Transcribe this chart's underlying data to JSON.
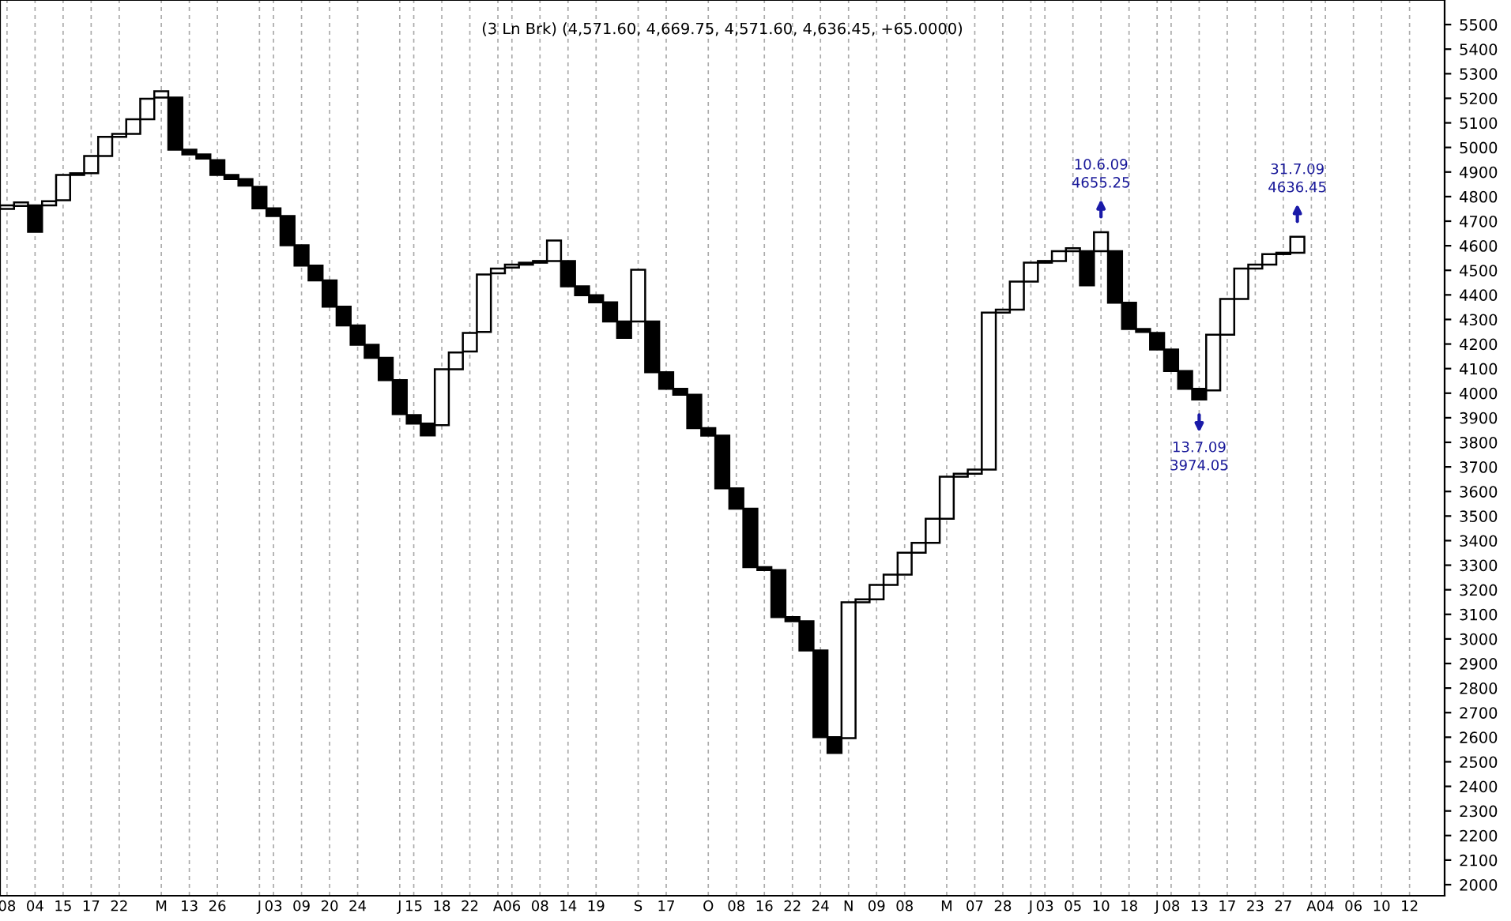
{
  "chart_data": {
    "type": "bar",
    "title": "(3 Ln Brk) (4,571.60, 4,669.75, 4,571.60, 4,636.45, +65.0000)",
    "categories": [
      "08",
      null,
      "04",
      null,
      "15",
      null,
      "17",
      null,
      "22",
      null,
      null,
      "M",
      null,
      "13",
      null,
      "26",
      null,
      null,
      "J",
      "03",
      null,
      "09",
      null,
      "20",
      null,
      "24",
      null,
      null,
      "J",
      "15",
      null,
      "18",
      null,
      "22",
      null,
      "A",
      "06",
      null,
      "08",
      null,
      "14",
      null,
      "19",
      null,
      null,
      "S",
      null,
      "17",
      null,
      null,
      "O",
      null,
      "08",
      null,
      "16",
      null,
      "22",
      null,
      "24",
      null,
      "N",
      null,
      "09",
      null,
      "08",
      null,
      null,
      "M",
      null,
      "07",
      null,
      "28",
      null,
      "J",
      "03",
      null,
      "05",
      null,
      "10",
      null,
      "18",
      null,
      "J",
      "08",
      null,
      "13",
      null,
      "17",
      null,
      "23",
      null,
      "27",
      null,
      "A",
      "04",
      null,
      "06",
      null,
      "10",
      null,
      "12",
      null,
      null
    ],
    "base": [
      4750,
      4762,
      4657,
      4764,
      4785,
      4888,
      4895,
      4965,
      5043,
      5055,
      5115,
      5203,
      4991,
      4972,
      4955,
      4888,
      4871,
      4845,
      4752,
      4721,
      4602,
      4519,
      4459,
      4352,
      4276,
      4197,
      4144,
      4053,
      3915,
      3876,
      3828,
      3870,
      4097,
      4170,
      4249,
      4488,
      4511,
      4523,
      4531,
      4538,
      4435,
      4399,
      4370,
      4292,
      4225,
      4292,
      4085,
      4018,
      3994,
      3858,
      3827,
      3613,
      3530,
      3292,
      3280,
      3089,
      3072,
      2953,
      2600,
      2536,
      2596,
      3149,
      3161,
      3220,
      3262,
      3351,
      3391,
      3489,
      3660,
      3672,
      3689,
      4328,
      4340,
      4454,
      4531,
      4538,
      4578,
      4439,
      4578,
      4368,
      4261,
      4249,
      4178,
      4090,
      4018,
      3974.05,
      4011,
      4238,
      4383,
      4507,
      4523,
      4566,
      4571.6,
      null,
      null,
      null,
      null,
      null,
      null,
      null,
      null,
      null,
      null
    ],
    "values": [
      14,
      14,
      107,
      17,
      103,
      7,
      70,
      78,
      12,
      60,
      83,
      26,
      212,
      19,
      17,
      60,
      17,
      26,
      88,
      31,
      119,
      83,
      60,
      107,
      76,
      79,
      53,
      91,
      138,
      35,
      48,
      227,
      69,
      75,
      234,
      19,
      12,
      8,
      7,
      83,
      103,
      36,
      29,
      78,
      67,
      210,
      207,
      67,
      24,
      136,
      31,
      214,
      83,
      238,
      12,
      191,
      17,
      119,
      353,
      64,
      553,
      12,
      59,
      42,
      89,
      40,
      98,
      171,
      12,
      17,
      639,
      12,
      114,
      77,
      7,
      40,
      12,
      139,
      77.25,
      210,
      107,
      12,
      67,
      88,
      72,
      43.95,
      227,
      145,
      124,
      16,
      43,
      5.6,
      64.85,
      null,
      null,
      null,
      null,
      null,
      null,
      null,
      null,
      null,
      null
    ],
    "colors": [
      "#ffffff",
      "#ffffff",
      "#000000",
      "#ffffff",
      "#ffffff",
      "#ffffff",
      "#ffffff",
      "#ffffff",
      "#ffffff",
      "#ffffff",
      "#ffffff",
      "#ffffff",
      "#000000",
      "#000000",
      "#000000",
      "#000000",
      "#000000",
      "#000000",
      "#000000",
      "#000000",
      "#000000",
      "#000000",
      "#000000",
      "#000000",
      "#000000",
      "#000000",
      "#000000",
      "#000000",
      "#000000",
      "#000000",
      "#000000",
      "#ffffff",
      "#ffffff",
      "#ffffff",
      "#ffffff",
      "#ffffff",
      "#ffffff",
      "#ffffff",
      "#ffffff",
      "#ffffff",
      "#000000",
      "#000000",
      "#000000",
      "#000000",
      "#000000",
      "#ffffff",
      "#000000",
      "#000000",
      "#000000",
      "#000000",
      "#000000",
      "#000000",
      "#000000",
      "#000000",
      "#000000",
      "#000000",
      "#000000",
      "#000000",
      "#000000",
      "#000000",
      "#ffffff",
      "#ffffff",
      "#ffffff",
      "#ffffff",
      "#ffffff",
      "#ffffff",
      "#ffffff",
      "#ffffff",
      "#ffffff",
      "#ffffff",
      "#ffffff",
      "#ffffff",
      "#ffffff",
      "#ffffff",
      "#ffffff",
      "#ffffff",
      "#ffffff",
      "#000000",
      "#ffffff",
      "#000000",
      "#000000",
      "#000000",
      "#000000",
      "#000000",
      "#000000",
      "#000000",
      "#ffffff",
      "#ffffff",
      "#ffffff",
      "#ffffff",
      "#ffffff",
      "#ffffff",
      "#ffffff",
      null,
      null,
      null,
      null,
      null,
      null,
      null,
      null,
      null,
      null
    ],
    "ylim": [
      1955,
      5600
    ],
    "yticks": [
      2000,
      2100,
      2200,
      2300,
      2400,
      2500,
      2600,
      2700,
      2800,
      2900,
      3000,
      3100,
      3200,
      3300,
      3400,
      3500,
      3600,
      3700,
      3800,
      3900,
      4000,
      4100,
      4200,
      4300,
      4400,
      4500,
      4600,
      4700,
      4800,
      4900,
      5000,
      5100,
      5200,
      5300,
      5400,
      5500
    ],
    "grid": "x",
    "annotations": [
      "10.6.09\n4655.25",
      "13.7.09\n3974.05",
      "31.7.09\n4636.45"
    ]
  }
}
